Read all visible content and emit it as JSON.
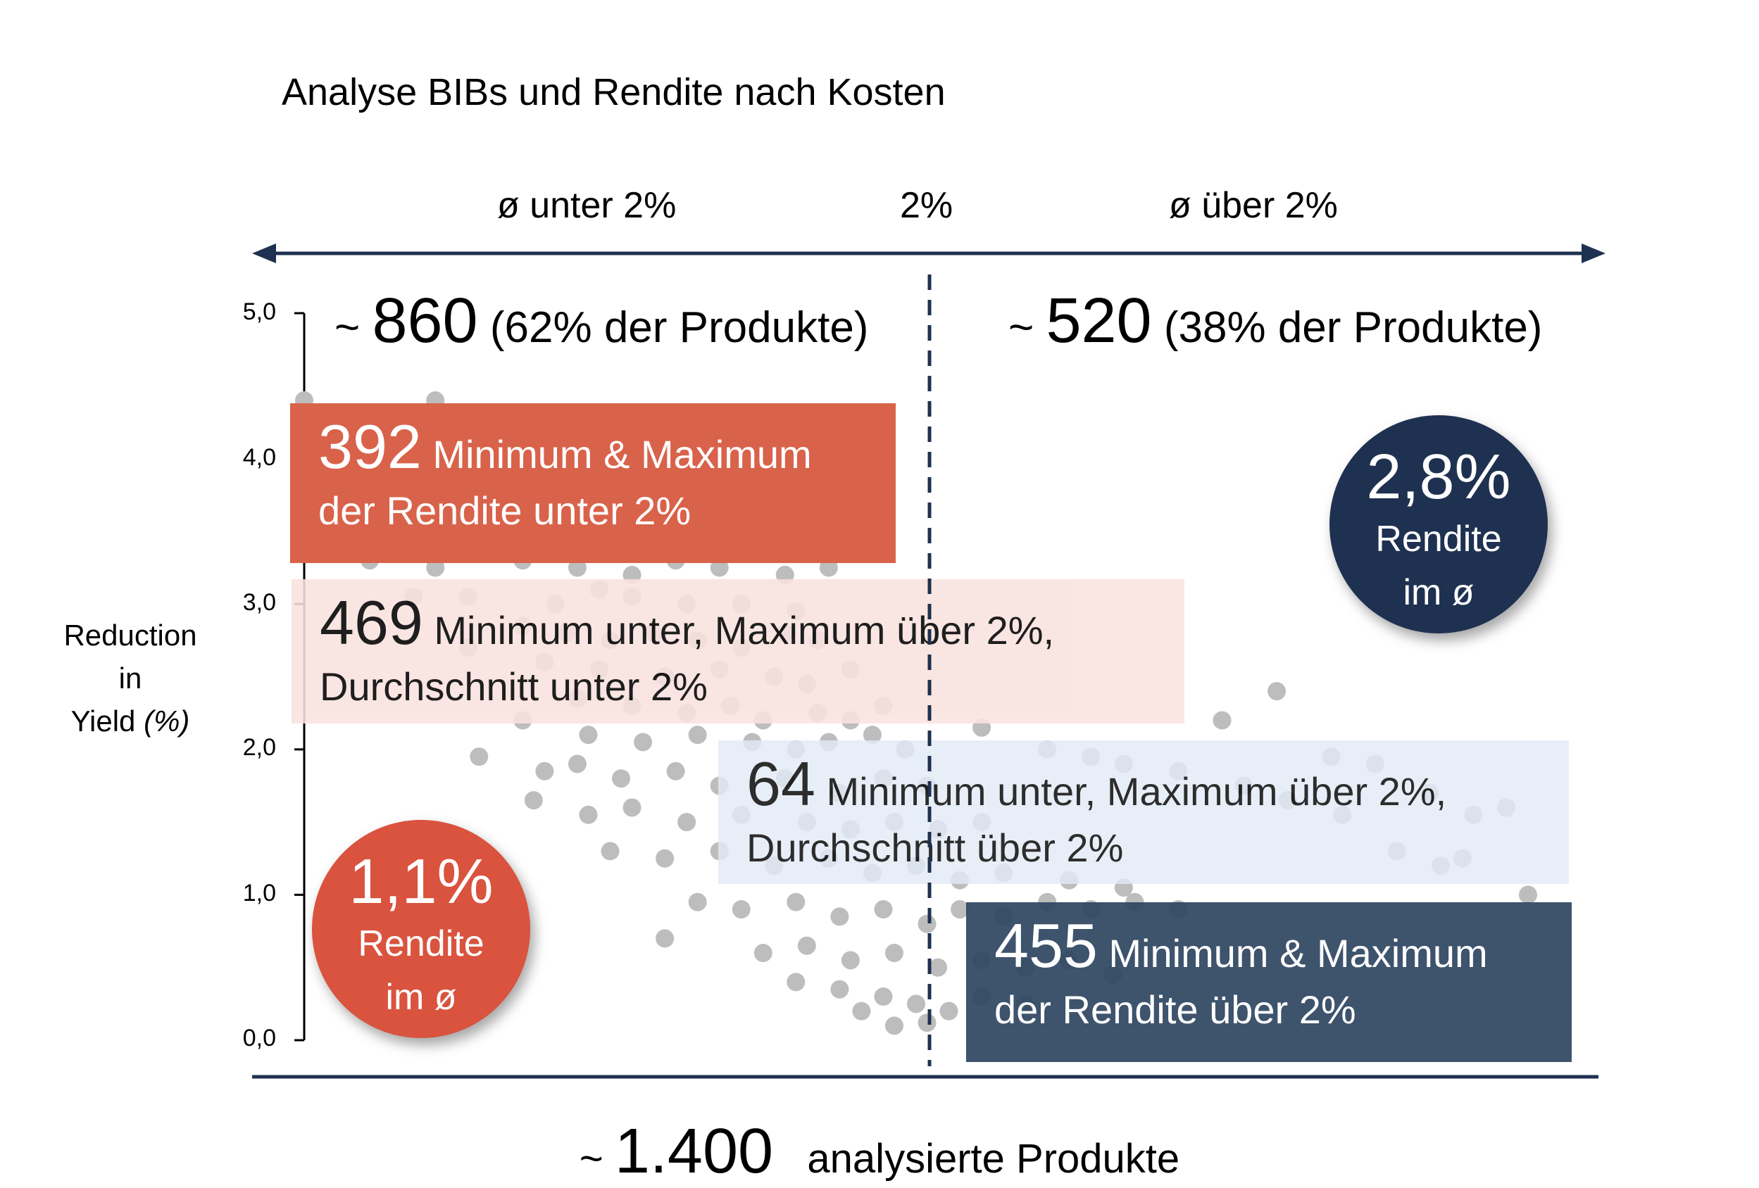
{
  "title": "Analyse BIBs und Rendite nach Kosten",
  "top_axis": {
    "left_label": "ø unter 2%",
    "center_label": "2%",
    "right_label": "ø  über 2%"
  },
  "counts": {
    "left": {
      "tilde": "~",
      "number": "860",
      "note": "(62% der Produkte)"
    },
    "right": {
      "tilde": "~",
      "number": "520",
      "note": "(38% der Produkte)"
    }
  },
  "boxes": [
    {
      "number": "392",
      "line1": "Minimum & Maximum",
      "line2": "der Rendite unter 2%",
      "color": "#D9624A"
    },
    {
      "number": "469",
      "line1": "Minimum unter, Maximum über 2%,",
      "line2": "Durchschnitt unter 2%",
      "color": "#F9E2DE"
    },
    {
      "number": "64",
      "line1": "Minimum unter, Maximum über 2%,",
      "line2": "Durchschnitt über 2%",
      "color": "#E3EBF6"
    },
    {
      "number": "455",
      "line1": "Minimum & Maximum",
      "line2": "der Rendite über 2%",
      "color": "#2E4560"
    }
  ],
  "circles": [
    {
      "pct": "1,1%",
      "line1": "Rendite",
      "line2": "im ø",
      "color": "#D9533E"
    },
    {
      "pct": "2,8%",
      "line1": "Rendite",
      "line2": "im ø",
      "color": "#1F3150"
    }
  ],
  "ylabel": {
    "line1": "Reduction",
    "line2": "in",
    "line3": "Yield",
    "unit": "(%)"
  },
  "footer": {
    "tilde": "~",
    "number": "1.400",
    "text": "analysierte Produkte"
  },
  "chart_data": {
    "type": "scatter",
    "title": "Analyse BIBs und Rendite nach Kosten",
    "ylabel": "Reduction in Yield (%)",
    "ylim": [
      0,
      5
    ],
    "yticks": [
      "0,0",
      "1,0",
      "2,0",
      "3,0",
      "4,0",
      "5,0"
    ],
    "grid": false,
    "threshold_label": "2%",
    "point_color": "#BDBDBD",
    "points": [
      [
        0.0,
        4.4
      ],
      [
        0.12,
        4.4
      ],
      [
        0.42,
        4.1
      ],
      [
        0.45,
        4.05
      ],
      [
        0.1,
        3.85
      ],
      [
        0.18,
        3.7
      ],
      [
        0.22,
        3.6
      ],
      [
        0.26,
        3.55
      ],
      [
        0.3,
        3.5
      ],
      [
        0.34,
        3.45
      ],
      [
        0.39,
        3.4
      ],
      [
        0.41,
        3.35
      ],
      [
        0.06,
        3.3
      ],
      [
        0.12,
        3.25
      ],
      [
        0.2,
        3.3
      ],
      [
        0.25,
        3.25
      ],
      [
        0.3,
        3.2
      ],
      [
        0.34,
        3.3
      ],
      [
        0.38,
        3.25
      ],
      [
        0.44,
        3.2
      ],
      [
        0.48,
        3.25
      ],
      [
        0.1,
        3.05
      ],
      [
        0.15,
        3.05
      ],
      [
        0.23,
        3.0
      ],
      [
        0.27,
        3.1
      ],
      [
        0.3,
        3.05
      ],
      [
        0.35,
        3.0
      ],
      [
        0.4,
        3.0
      ],
      [
        0.45,
        2.95
      ],
      [
        0.2,
        2.85
      ],
      [
        0.24,
        2.8
      ],
      [
        0.28,
        2.75
      ],
      [
        0.32,
        2.8
      ],
      [
        0.36,
        2.75
      ],
      [
        0.4,
        2.7
      ],
      [
        0.44,
        2.8
      ],
      [
        0.47,
        2.75
      ],
      [
        0.15,
        2.7
      ],
      [
        0.22,
        2.6
      ],
      [
        0.27,
        2.55
      ],
      [
        0.33,
        2.5
      ],
      [
        0.38,
        2.55
      ],
      [
        0.43,
        2.5
      ],
      [
        0.46,
        2.45
      ],
      [
        0.5,
        2.55
      ],
      [
        0.25,
        2.35
      ],
      [
        0.3,
        2.3
      ],
      [
        0.35,
        2.25
      ],
      [
        0.39,
        2.3
      ],
      [
        0.42,
        2.2
      ],
      [
        0.47,
        2.25
      ],
      [
        0.5,
        2.2
      ],
      [
        0.53,
        2.3
      ],
      [
        0.2,
        2.2
      ],
      [
        0.26,
        2.1
      ],
      [
        0.31,
        2.05
      ],
      [
        0.36,
        2.1
      ],
      [
        0.41,
        2.05
      ],
      [
        0.45,
        2.0
      ],
      [
        0.48,
        2.05
      ],
      [
        0.52,
        2.1
      ],
      [
        0.55,
        2.0
      ],
      [
        0.16,
        1.95
      ],
      [
        0.22,
        1.85
      ],
      [
        0.25,
        1.9
      ],
      [
        0.29,
        1.8
      ],
      [
        0.34,
        1.85
      ],
      [
        0.38,
        1.75
      ],
      [
        0.44,
        1.8
      ],
      [
        0.49,
        1.7
      ],
      [
        0.53,
        1.8
      ],
      [
        0.57,
        1.75
      ],
      [
        0.21,
        1.65
      ],
      [
        0.26,
        1.55
      ],
      [
        0.3,
        1.6
      ],
      [
        0.35,
        1.5
      ],
      [
        0.4,
        1.55
      ],
      [
        0.46,
        1.5
      ],
      [
        0.5,
        1.45
      ],
      [
        0.54,
        1.5
      ],
      [
        0.58,
        1.45
      ],
      [
        0.62,
        1.5
      ],
      [
        0.28,
        1.3
      ],
      [
        0.33,
        1.25
      ],
      [
        0.38,
        1.3
      ],
      [
        0.43,
        1.2
      ],
      [
        0.48,
        1.25
      ],
      [
        0.52,
        1.15
      ],
      [
        0.56,
        1.2
      ],
      [
        0.6,
        1.1
      ],
      [
        0.64,
        1.15
      ],
      [
        0.7,
        1.1
      ],
      [
        0.75,
        1.05
      ],
      [
        0.36,
        0.95
      ],
      [
        0.4,
        0.9
      ],
      [
        0.45,
        0.95
      ],
      [
        0.49,
        0.85
      ],
      [
        0.53,
        0.9
      ],
      [
        0.57,
        0.8
      ],
      [
        0.6,
        0.9
      ],
      [
        0.64,
        0.85
      ],
      [
        0.68,
        0.95
      ],
      [
        0.72,
        0.9
      ],
      [
        0.76,
        0.95
      ],
      [
        0.8,
        0.9
      ],
      [
        0.33,
        0.7
      ],
      [
        0.42,
        0.6
      ],
      [
        0.46,
        0.65
      ],
      [
        0.5,
        0.55
      ],
      [
        0.54,
        0.6
      ],
      [
        0.58,
        0.5
      ],
      [
        0.62,
        0.55
      ],
      [
        0.66,
        0.5
      ],
      [
        0.7,
        0.55
      ],
      [
        0.74,
        0.45
      ],
      [
        0.45,
        0.4
      ],
      [
        0.49,
        0.35
      ],
      [
        0.53,
        0.3
      ],
      [
        0.56,
        0.25
      ],
      [
        0.59,
        0.2
      ],
      [
        0.62,
        0.3
      ],
      [
        0.66,
        0.25
      ],
      [
        0.51,
        0.2
      ],
      [
        0.54,
        0.1
      ],
      [
        0.57,
        0.12
      ],
      [
        0.62,
        2.15
      ],
      [
        0.68,
        2.0
      ],
      [
        0.72,
        1.95
      ],
      [
        0.75,
        1.9
      ],
      [
        0.8,
        1.85
      ],
      [
        0.86,
        1.75
      ],
      [
        0.9,
        1.65
      ],
      [
        0.95,
        1.55
      ],
      [
        1.0,
        1.3
      ],
      [
        1.04,
        1.2
      ],
      [
        1.07,
        1.55
      ],
      [
        1.1,
        1.6
      ],
      [
        1.12,
        1.0
      ],
      [
        0.84,
        2.2
      ],
      [
        0.89,
        2.4
      ],
      [
        0.94,
        1.95
      ],
      [
        0.98,
        1.9
      ],
      [
        1.03,
        1.7
      ],
      [
        1.06,
        1.25
      ]
    ]
  }
}
